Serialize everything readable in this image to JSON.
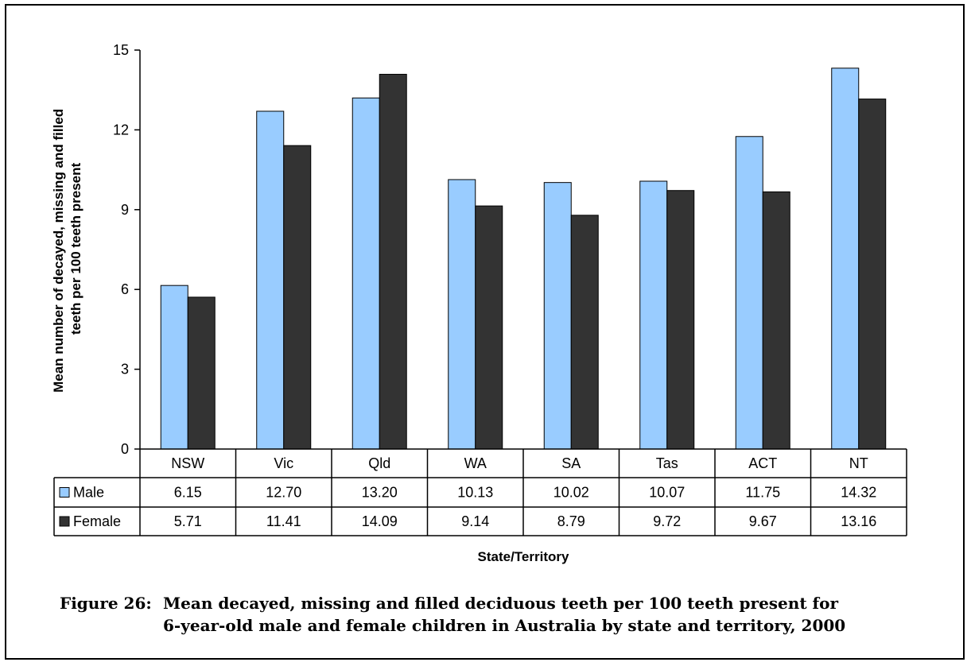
{
  "caption": {
    "label": "Figure 26:",
    "line1": "Mean decayed, missing and filled deciduous teeth per 100 teeth present for",
    "line2": "6-year-old male and female children in Australia by state and territory, 2000"
  },
  "chart_data": {
    "type": "bar",
    "title": "",
    "xlabel": "State/Territory",
    "ylabel_lines": [
      "Mean number of decayed, missing and filled",
      "teeth per 100 teeth present"
    ],
    "ylim": [
      0,
      15
    ],
    "yticks": [
      "0",
      "3",
      "6",
      "9",
      "12",
      "15"
    ],
    "categories": [
      "NSW",
      "Vic",
      "Qld",
      "WA",
      "SA",
      "Tas",
      "ACT",
      "NT"
    ],
    "series": [
      {
        "name": "Male",
        "color": "#99ccff",
        "values": [
          6.15,
          12.7,
          13.2,
          10.13,
          10.02,
          10.07,
          11.75,
          14.32
        ],
        "labels": [
          "6.15",
          "12.70",
          "13.20",
          "10.13",
          "10.02",
          "10.07",
          "11.75",
          "14.32"
        ]
      },
      {
        "name": "Female",
        "color": "#333333",
        "values": [
          5.71,
          11.41,
          14.09,
          9.14,
          8.79,
          9.72,
          9.67,
          13.16
        ],
        "labels": [
          "5.71",
          "11.41",
          "14.09",
          "9.14",
          "8.79",
          "9.72",
          "9.67",
          "13.16"
        ]
      }
    ],
    "grid": false,
    "legend": "data-table"
  }
}
